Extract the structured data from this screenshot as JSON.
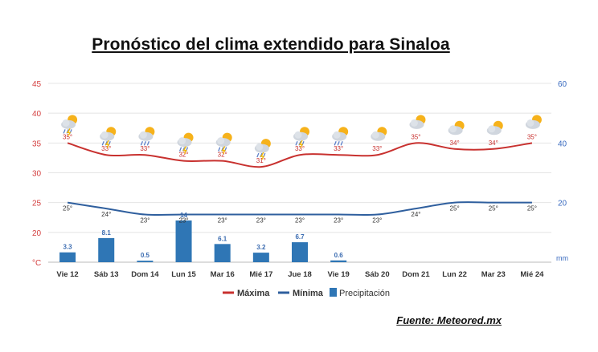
{
  "title": "Pronóstico del clima extendido para Sinaloa",
  "source": "Fuente: Meteored.mx",
  "colors": {
    "max": "#c8312f",
    "min": "#2f5f9e",
    "precip": "#2f76b5",
    "left_axis": "#d44040",
    "right_axis": "#3a6bc0",
    "grid": "#e4e4e4"
  },
  "chart_data": {
    "type": "line",
    "categories": [
      "Vie 12",
      "Sáb 13",
      "Dom 14",
      "Lun 15",
      "Mar 16",
      "Mié 17",
      "Jue 18",
      "Vie 19",
      "Sáb 20",
      "Dom 21",
      "Lun 22",
      "Mar 23",
      "Mié 24"
    ],
    "series": [
      {
        "name": "Máxima",
        "type": "line",
        "axis": "left",
        "values": [
          35,
          33,
          33,
          32,
          32,
          31,
          33,
          33,
          33,
          35,
          34,
          34,
          35
        ],
        "labels": [
          "35°",
          "33°",
          "33°",
          "32°",
          "32°",
          "31°",
          "33°",
          "33°",
          "33°",
          "35°",
          "34°",
          "34°",
          "35°"
        ]
      },
      {
        "name": "Mínima",
        "type": "line",
        "axis": "left",
        "values": [
          25,
          24,
          23,
          23,
          23,
          23,
          23,
          23,
          23,
          24,
          25,
          25,
          25
        ],
        "labels": [
          "25°",
          "24°",
          "23°",
          "23°",
          "23°",
          "23°",
          "23°",
          "23°",
          "23°",
          "24°",
          "25°",
          "25°",
          "25°"
        ]
      },
      {
        "name": "Precipitación",
        "type": "bar",
        "axis": "right",
        "values": [
          3.3,
          8.1,
          0.5,
          14,
          6.1,
          3.2,
          6.7,
          0.6,
          0,
          0,
          0,
          0,
          0
        ],
        "labels": [
          "3.3",
          "8.1",
          "0.5",
          "14",
          "6.1",
          "3.2",
          "6.7",
          "0.6",
          "",
          "",
          "",
          "",
          ""
        ]
      }
    ],
    "left_axis": {
      "ticks": [
        "45",
        "40",
        "35",
        "30",
        "25",
        "20",
        "°C"
      ],
      "unit": "°C",
      "range": [
        15,
        45
      ]
    },
    "right_axis": {
      "ticks": [
        "60",
        "40",
        "20",
        "mm"
      ],
      "unit": "mm",
      "range": [
        0,
        60
      ]
    },
    "icons": [
      "storm-icon",
      "storm-icon",
      "rain-icon",
      "storm-icon",
      "storm-icon",
      "storm-icon",
      "storm-icon",
      "rain-icon",
      "partly-cloudy-icon",
      "partly-cloudy-icon",
      "partly-cloudy-icon",
      "partly-cloudy-icon",
      "partly-cloudy-icon"
    ],
    "legend": {
      "placement": "bottom-center",
      "items": [
        "Máxima",
        "Mínima",
        "Precipitación"
      ]
    },
    "grid": true
  }
}
